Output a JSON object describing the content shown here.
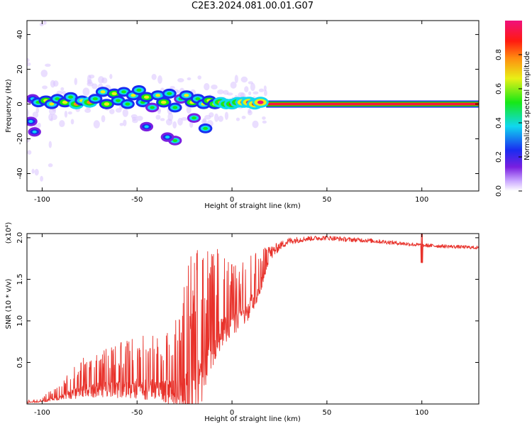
{
  "page_title": "C2E3.2024.081.00.01.G07",
  "chart_data": [
    {
      "type": "heatmap",
      "title": "C2E3.2024.081.00.01.G07",
      "xlabel": "Height of straight line (km)",
      "ylabel": "Frequency (Hz)",
      "xlim": [
        -108,
        130
      ],
      "ylim": [
        -50,
        48
      ],
      "x_ticks": [
        -100,
        -50,
        0,
        50,
        100
      ],
      "y_ticks": [
        -40,
        -20,
        0,
        20,
        40
      ],
      "colorbar": {
        "label": "Normalized spectral amplitude",
        "range": [
          0,
          1
        ],
        "ticks": [
          "0.0",
          "0.2",
          "0.4",
          "0.6",
          "0.8"
        ],
        "tick_values": [
          0,
          0.2,
          0.4,
          0.6,
          0.8
        ],
        "colormap": "rainbow (white-violet-blue-cyan-green-yellow-orange-red-magenta)"
      },
      "grid": false,
      "summary": {
        "steady_line": {
          "x_from": 18,
          "x_to": 130,
          "frequency": 0,
          "amplitude": 0.85
        },
        "noisy_region": {
          "x_from": -108,
          "x_to": 18,
          "frequency_range": [
            -8,
            10
          ]
        }
      },
      "blobs": [
        [
          -105,
          3,
          0.35
        ],
        [
          -102,
          1,
          0.5
        ],
        [
          -98,
          2,
          0.6
        ],
        [
          -95,
          0,
          0.55
        ],
        [
          -92,
          3,
          0.45
        ],
        [
          -88,
          1,
          0.6
        ],
        [
          -85,
          4,
          0.5
        ],
        [
          -82,
          0,
          0.7
        ],
        [
          -79,
          2,
          0.55
        ],
        [
          -75,
          1,
          0.75
        ],
        [
          -72,
          3,
          0.5
        ],
        [
          -68,
          7,
          0.55
        ],
        [
          -66,
          0,
          0.65
        ],
        [
          -62,
          6,
          0.6
        ],
        [
          -60,
          2,
          0.5
        ],
        [
          -57,
          7,
          0.45
        ],
        [
          -55,
          0,
          0.5
        ],
        [
          -52,
          5,
          0.55
        ],
        [
          -49,
          8,
          0.5
        ],
        [
          -47,
          1,
          0.45
        ],
        [
          -45,
          4,
          0.6
        ],
        [
          -42,
          -2,
          0.4
        ],
        [
          -39,
          5,
          0.55
        ],
        [
          -36,
          1,
          0.65
        ],
        [
          -33,
          6,
          0.5
        ],
        [
          -30,
          -2,
          0.45
        ],
        [
          -27,
          3,
          0.4
        ],
        [
          -24,
          5,
          0.55
        ],
        [
          -21,
          1,
          0.6
        ],
        [
          -18,
          3,
          0.5
        ],
        [
          -15,
          0,
          0.55
        ],
        [
          -12,
          2,
          0.6
        ],
        [
          -9,
          0,
          0.65
        ],
        [
          -6,
          1,
          0.75
        ],
        [
          -3,
          0,
          0.7
        ],
        [
          0,
          0,
          0.8
        ],
        [
          3,
          1,
          0.75
        ],
        [
          6,
          1,
          0.85
        ],
        [
          9,
          1,
          0.9
        ],
        [
          12,
          0,
          0.85
        ],
        [
          15,
          1,
          0.9
        ],
        [
          -14,
          -14,
          0.45
        ],
        [
          -20,
          -8,
          0.4
        ],
        [
          -30,
          -21,
          0.4
        ],
        [
          -34,
          -19,
          0.35
        ],
        [
          -45,
          -13,
          0.35
        ],
        [
          -106,
          -10,
          0.35
        ],
        [
          -104,
          -16,
          0.3
        ]
      ]
    },
    {
      "type": "line",
      "title": "",
      "xlabel": "Height of straight line (km)",
      "ylabel": "SNR (10 * v/v)",
      "y_multiplier": "(x10⁴)",
      "xlim": [
        -108,
        130
      ],
      "ylim": [
        0,
        2.05
      ],
      "x_ticks": [
        -100,
        -50,
        0,
        50,
        100
      ],
      "y_ticks": [
        0.5,
        1.0,
        1.5,
        2.0
      ],
      "y_tick_labels": [
        "0.5",
        "1.0",
        "1.5",
        "2.0"
      ],
      "grid": false,
      "series": [
        {
          "color": "#e8322b",
          "baseline": {
            "x": [
              -108,
              -100,
              -90,
              -80,
              -70,
              -60,
              -50,
              -40,
              -30,
              -22,
              -16,
              -12,
              -8,
              -4,
              0,
              5,
              10,
              15,
              20,
              25,
              30,
              40,
              50,
              60,
              70,
              80,
              90,
              100,
              110,
              120,
              130
            ],
            "y": [
              0.02,
              0.04,
              0.12,
              0.22,
              0.26,
              0.28,
              0.3,
              0.3,
              0.32,
              0.4,
              0.6,
              0.8,
              1.0,
              1.05,
              1.1,
              1.15,
              1.3,
              1.5,
              1.8,
              1.9,
              1.96,
              1.99,
              2.0,
              1.98,
              1.97,
              1.95,
              1.93,
              1.91,
              1.9,
              1.89,
              1.88
            ]
          },
          "noise_amplitude": {
            "x": [
              -108,
              -100,
              -90,
              -80,
              -60,
              -40,
              -28,
              -22,
              -16,
              -10,
              -4,
              0,
              10,
              15,
              20,
              25,
              40,
              130
            ],
            "y": [
              0.02,
              0.03,
              0.12,
              0.25,
              0.35,
              0.45,
              0.6,
              1.1,
              1.0,
              0.75,
              0.55,
              0.45,
              0.4,
              0.3,
              0.1,
              0.05,
              0.03,
              0.02
            ]
          }
        }
      ]
    }
  ]
}
